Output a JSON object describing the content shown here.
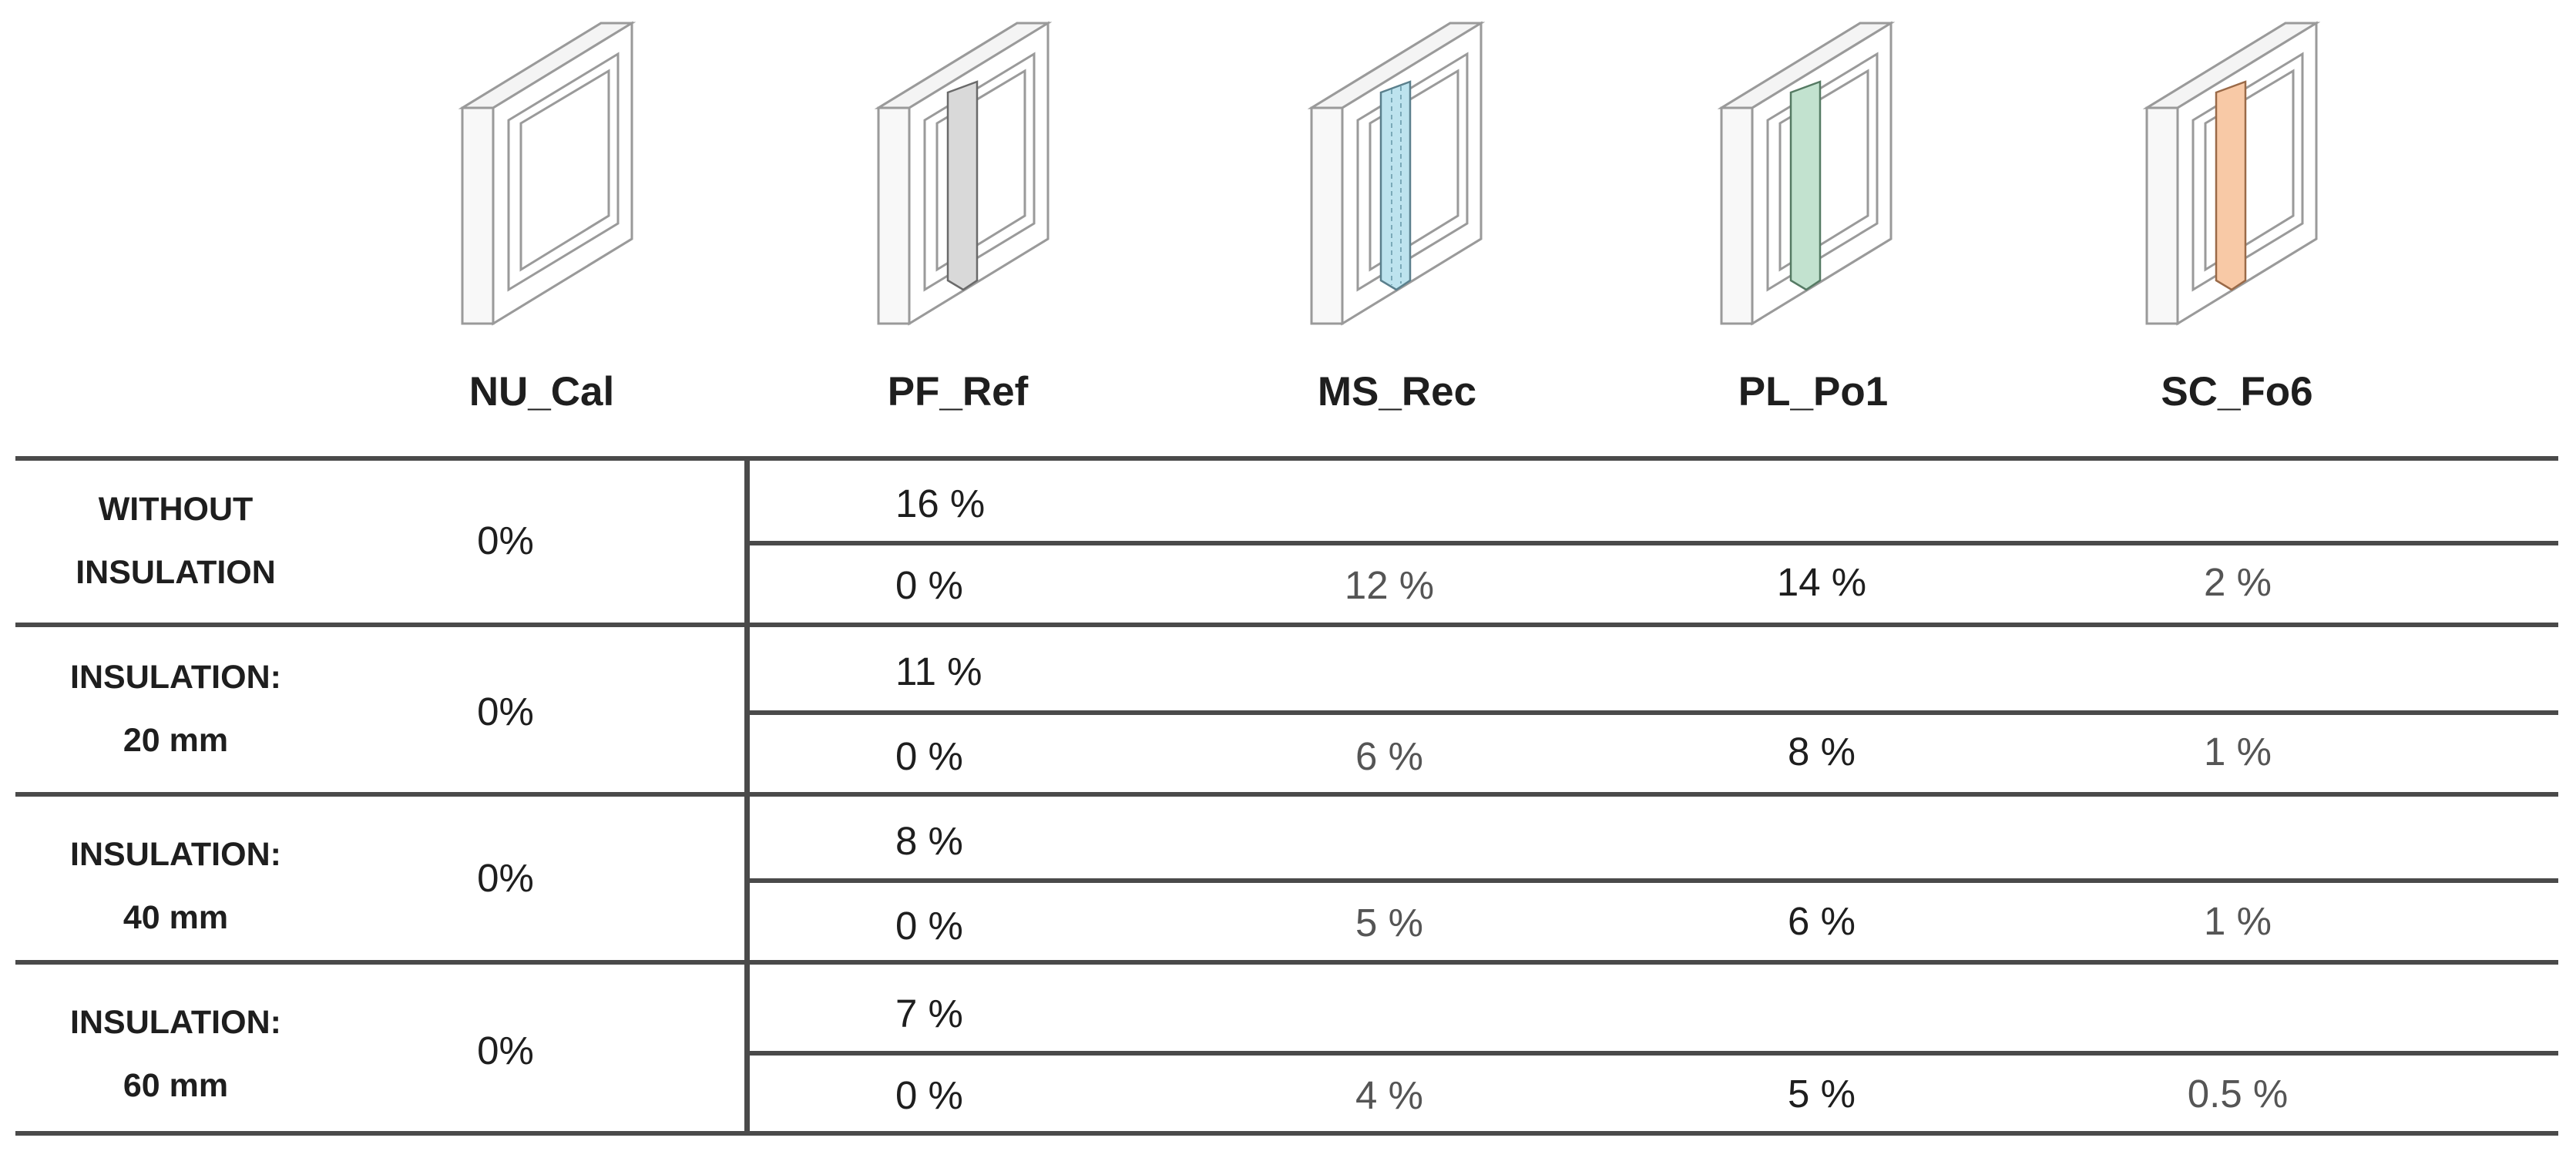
{
  "header": {
    "columns": [
      {
        "label": "NU_Cal",
        "bar_color": null
      },
      {
        "label": "PF_Ref",
        "bar_color": "#d9d9d9"
      },
      {
        "label": "MS_Rec",
        "bar_color": "#bde3ee"
      },
      {
        "label": "PL_Po1",
        "bar_color": "#c2e2cf"
      },
      {
        "label": "SC_Fo6",
        "bar_color": "#f8c9a6"
      }
    ]
  },
  "rows": [
    {
      "label_line1": "WITHOUT",
      "label_line2": "INSULATION",
      "nu_cal": "0%",
      "pf_ref": "16 %",
      "pf_ref_base": "0 %",
      "ms_rec": "12 %",
      "pl_po1": "14 %",
      "sc_fo6": "2 %"
    },
    {
      "label_line1": "INSULATION:",
      "label_line2": "20 mm",
      "nu_cal": "0%",
      "pf_ref": "11 %",
      "pf_ref_base": "0 %",
      "ms_rec": "6 %",
      "pl_po1": "8 %",
      "sc_fo6": "1 %"
    },
    {
      "label_line1": "INSULATION:",
      "label_line2": "40 mm",
      "nu_cal": "0%",
      "pf_ref": "8 %",
      "pf_ref_base": "0 %",
      "ms_rec": "5 %",
      "pl_po1": "6 %",
      "sc_fo6": "1 %"
    },
    {
      "label_line1": "INSULATION:",
      "label_line2": "60 mm",
      "nu_cal": "0%",
      "pf_ref": "7 %",
      "pf_ref_base": "0 %",
      "ms_rec": "4 %",
      "pl_po1": "5 %",
      "sc_fo6": "0.5 %"
    }
  ],
  "colors": {
    "line": "#4a4a4a",
    "frame_stroke": "#9a9a9a"
  }
}
